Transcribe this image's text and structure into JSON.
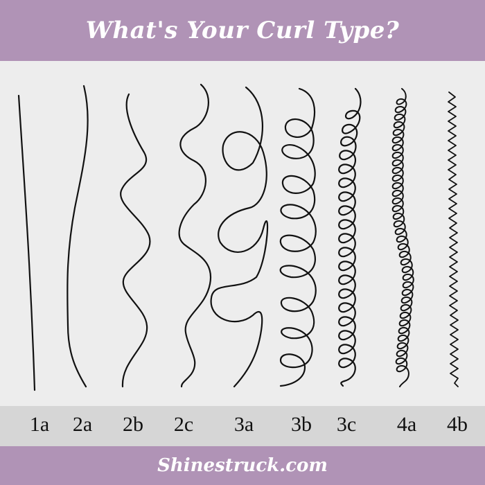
{
  "header": {
    "title": "What's Your Curl Type?"
  },
  "footer": {
    "site": "Shinestruck.com"
  },
  "colors": {
    "accent": "#b093b6",
    "background": "#ededed",
    "label_bar": "#d6d6d6",
    "stroke": "#111111"
  },
  "curl_types": [
    {
      "label": "1a",
      "style": "straight"
    },
    {
      "label": "2a",
      "style": "gentle-wave"
    },
    {
      "label": "2b",
      "style": "wave"
    },
    {
      "label": "2c",
      "style": "deep-wave"
    },
    {
      "label": "3a",
      "style": "large-loops"
    },
    {
      "label": "3b",
      "style": "medium-loops"
    },
    {
      "label": "3c",
      "style": "small-loops"
    },
    {
      "label": "4a",
      "style": "tight-coils"
    },
    {
      "label": "4b",
      "style": "zigzag"
    }
  ]
}
